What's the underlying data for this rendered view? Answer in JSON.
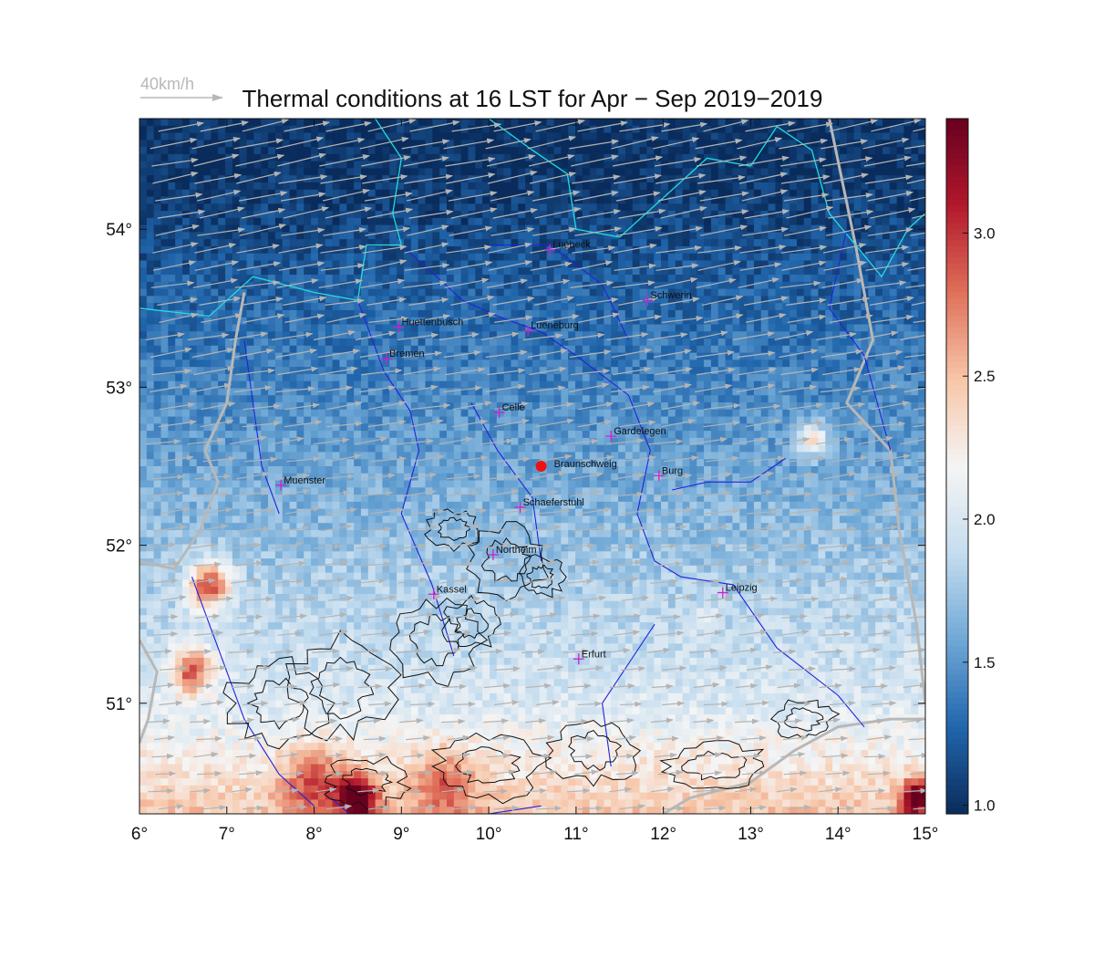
{
  "title": "Thermal conditions at 16 LST for Apr − Sep  2019−2019",
  "wind_reference": {
    "label": "40km/h",
    "color": "#b8b8b8"
  },
  "axes": {
    "lon_ticks": [
      "6°",
      "7°",
      "8°",
      "9°",
      "10°",
      "11°",
      "12°",
      "13°",
      "14°",
      "15°"
    ],
    "lat_ticks": [
      "54°",
      "53°",
      "52°",
      "51°"
    ],
    "lon_range": [
      6,
      15
    ],
    "lat_range": [
      50.3,
      54.7
    ]
  },
  "colorbar": {
    "ticks": [
      "3.0",
      "2.5",
      "2.0",
      "1.5",
      "1.0"
    ],
    "range": [
      0.97,
      3.4
    ],
    "colors": [
      "#0a2c5c",
      "#2166ac",
      "#6fa8d6",
      "#c5ddef",
      "#f5f5f5",
      "#f7c6a8",
      "#e0705a",
      "#b2182b",
      "#67001f"
    ]
  },
  "cities": [
    {
      "name": "Luebeck",
      "lon": 10.7,
      "lat": 53.87
    },
    {
      "name": "Schwerin",
      "lon": 11.82,
      "lat": 53.55
    },
    {
      "name": "Huettenbusch",
      "lon": 8.97,
      "lat": 53.38
    },
    {
      "name": "Lueneburg",
      "lon": 10.45,
      "lat": 53.36
    },
    {
      "name": "Bremen",
      "lon": 8.83,
      "lat": 53.18
    },
    {
      "name": "Celle",
      "lon": 10.12,
      "lat": 52.84
    },
    {
      "name": "Gardelegen",
      "lon": 11.4,
      "lat": 52.69
    },
    {
      "name": "Burg",
      "lon": 11.95,
      "lat": 52.44
    },
    {
      "name": "Muenster",
      "lon": 7.62,
      "lat": 52.38
    },
    {
      "name": "Schaeferstuhl",
      "lon": 10.36,
      "lat": 52.24
    },
    {
      "name": "Northeim",
      "lon": 10.05,
      "lat": 51.94
    },
    {
      "name": "Kassel",
      "lon": 9.37,
      "lat": 51.69
    },
    {
      "name": "Leipzig",
      "lon": 12.68,
      "lat": 51.7
    },
    {
      "name": "Erfurt",
      "lon": 11.03,
      "lat": 51.28
    }
  ],
  "highlight_site": {
    "name": "Braunschweig",
    "lon": 10.6,
    "lat": 52.5,
    "color": "#ee1111"
  },
  "style_colors": {
    "rivers": "#2222dd",
    "coastline": "#22dddd",
    "orography_contours": "#111111",
    "borders": "#b8b8b8",
    "city_marker": "#cc22cc",
    "wind_arrows": "#b4b4b4"
  }
}
